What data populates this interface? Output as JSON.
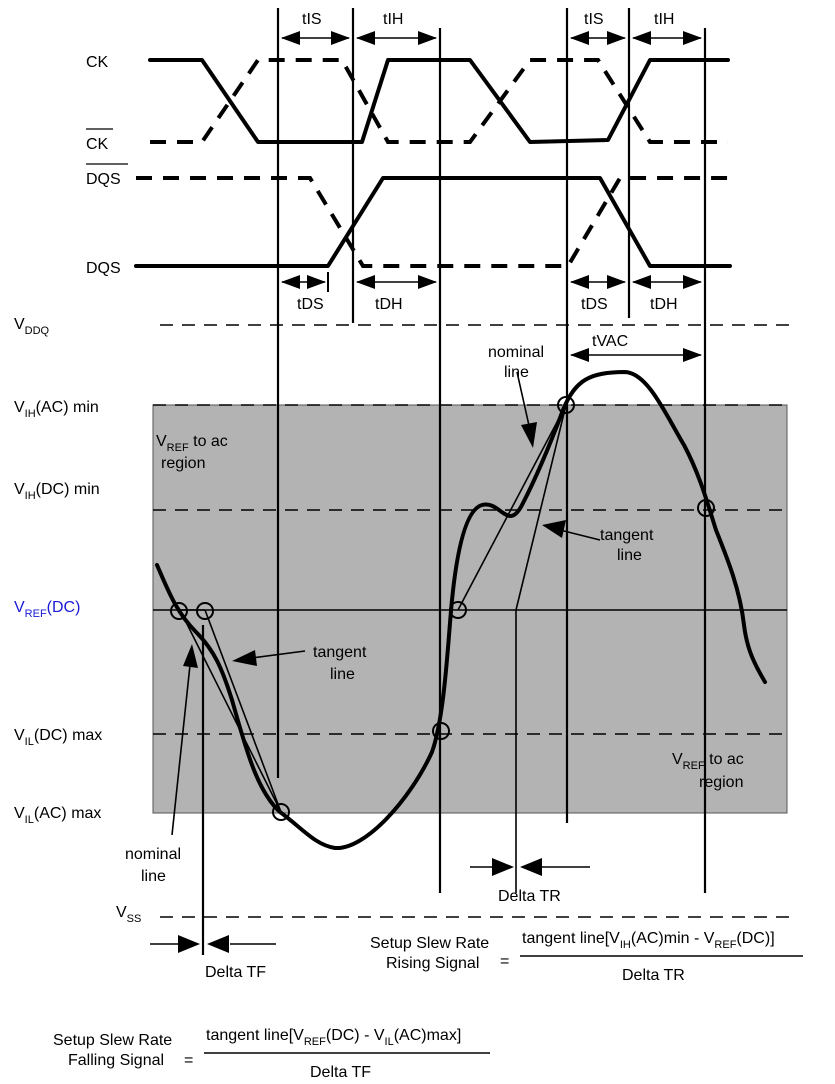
{
  "signals": {
    "ck": "CK",
    "ck_bar": "CK",
    "dqs_bar": "DQS",
    "dqs": "DQS"
  },
  "timing": {
    "tis": "tIS",
    "tih": "tIH",
    "tds": "tDS",
    "tdh": "tDH",
    "tvac": "tVAC"
  },
  "levels": {
    "vddq": {
      "main": "V",
      "sub": "DDQ",
      "suffix": ""
    },
    "vih_ac": {
      "main": "V",
      "sub": "IH",
      "suffix": "(AC) min"
    },
    "vih_dc": {
      "main": "V",
      "sub": "IH",
      "suffix": "(DC) min"
    },
    "vref_dc": {
      "main": "V",
      "sub": "REF",
      "suffix": "(DC)"
    },
    "vil_dc": {
      "main": "V",
      "sub": "IL",
      "suffix": "(DC) max"
    },
    "vil_ac": {
      "main": "V",
      "sub": "IL",
      "suffix": "(AC) max"
    },
    "vss": {
      "main": "V",
      "sub": "SS",
      "suffix": ""
    }
  },
  "region_labels": {
    "upper": {
      "main": "V",
      "sub": "REF",
      "after": " to ac",
      "line2": "region"
    },
    "lower": {
      "main": "V",
      "sub": "REF",
      "after": " to ac",
      "line2": "region"
    }
  },
  "annotations": {
    "nominal_line_1": "nominal",
    "nominal_line_2": "line",
    "tangent_line_1": "tangent",
    "tangent_line_2": "line",
    "delta_tr": "Delta TR",
    "delta_tf": "Delta TF"
  },
  "formulas": {
    "rising": {
      "label_1": "Setup Slew Rate",
      "label_2": "Rising Signal",
      "eq": "=",
      "num_a": "tangent line[V",
      "num_sub_a": "IH",
      "num_b": "(AC)min - V",
      "num_sub_b": "REF",
      "num_c": "(DC)]",
      "den": "Delta TR"
    },
    "falling": {
      "label_1": "Setup Slew Rate",
      "label_2": "Falling Signal",
      "eq": "=",
      "num_a": "tangent line[V",
      "num_sub_a": "REF",
      "num_b": "(DC) - V",
      "num_sub_b": "IL",
      "num_c": "(AC)max]",
      "den": "Delta TF"
    }
  },
  "colors": {
    "region_fill": "#b3b3b3",
    "vref_label": "#1a1ad6"
  }
}
